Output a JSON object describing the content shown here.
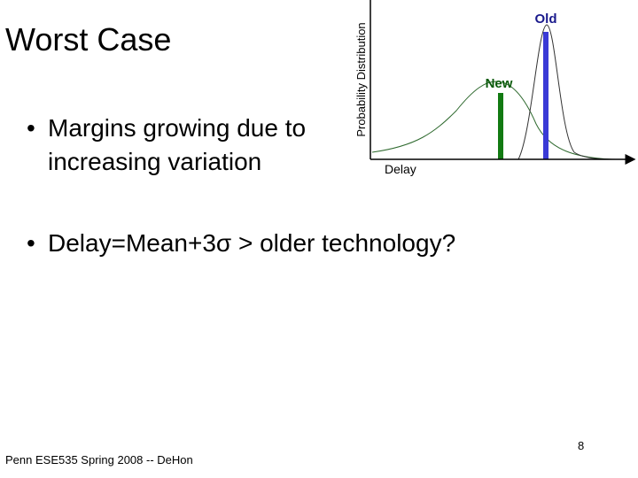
{
  "slide": {
    "title": "Worst Case",
    "bullets": [
      "Margins growing due to increasing variation",
      "Delay=Mean+3σ > older technology?"
    ],
    "figure": {
      "y_axis_label": "Probability Distribution",
      "x_axis_label": "Delay",
      "old_label": "Old",
      "new_label": "New"
    },
    "footer": "Penn ESE535 Spring 2008 -- DeHon",
    "page_number": "8"
  }
}
